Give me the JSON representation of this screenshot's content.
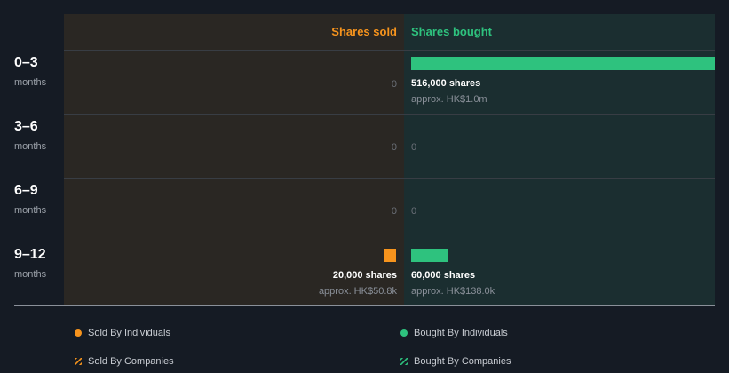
{
  "chart_data": {
    "type": "bar",
    "headers": {
      "sold": "Shares sold",
      "bought": "Shares bought"
    },
    "unit": "shares",
    "categories": [
      {
        "period": "0–3",
        "unit": "months"
      },
      {
        "period": "3–6",
        "unit": "months"
      },
      {
        "period": "6–9",
        "unit": "months"
      },
      {
        "period": "9–12",
        "unit": "months"
      }
    ],
    "series": [
      {
        "name": "Shares sold",
        "side": "sold",
        "values": [
          0,
          0,
          0,
          20000
        ]
      },
      {
        "name": "Shares bought",
        "side": "bought",
        "values": [
          516000,
          0,
          0,
          60000
        ]
      }
    ],
    "labels": {
      "sold": [
        {
          "shares": "0",
          "approx": ""
        },
        {
          "shares": "0",
          "approx": ""
        },
        {
          "shares": "0",
          "approx": ""
        },
        {
          "shares": "20,000 shares",
          "approx": "approx. HK$50.8k"
        }
      ],
      "bought": [
        {
          "shares": "516,000 shares",
          "approx": "approx. HK$1.0m"
        },
        {
          "shares": "0",
          "approx": ""
        },
        {
          "shares": "0",
          "approx": ""
        },
        {
          "shares": "60,000 shares",
          "approx": "approx. HK$138.0k"
        }
      ]
    },
    "legend": [
      "Sold By Individuals",
      "Bought By Individuals",
      "Sold By Companies",
      "Bought By Companies"
    ],
    "colors": {
      "sold": "#f7941d",
      "bought": "#2ec27e"
    }
  }
}
